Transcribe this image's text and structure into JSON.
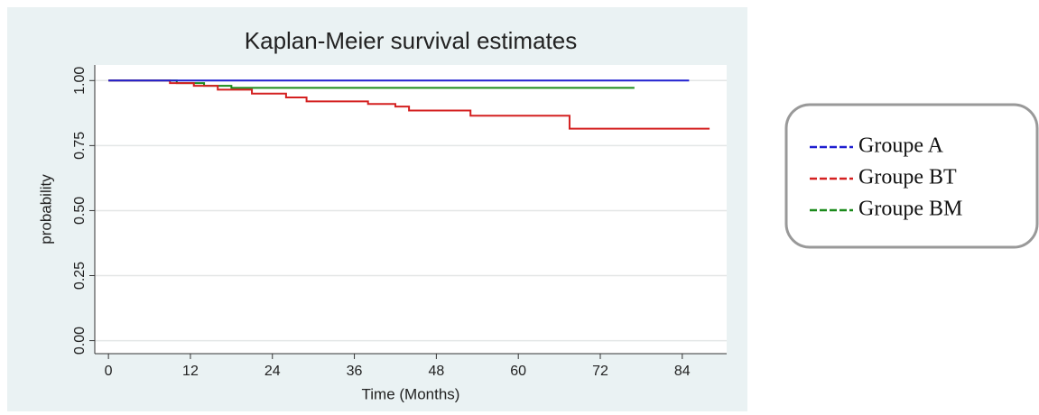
{
  "chart_data": {
    "type": "line",
    "steps": true,
    "title": "Kaplan-Meier survival estimates",
    "x_label": "Time (Months)",
    "y_label": "probability",
    "xlim": [
      -2,
      90.5
    ],
    "ylim": [
      -0.05,
      1.06
    ],
    "xticks": [
      0,
      12,
      24,
      36,
      48,
      60,
      72,
      84
    ],
    "yticks": [
      {
        "value": 0,
        "label": "0.00"
      },
      0.25,
      {
        "value": 0.5,
        "label": "0.50"
      },
      0.75,
      {
        "value": 1,
        "label": "1.00"
      }
    ],
    "grid": true,
    "series": [
      {
        "name": "Groupe A",
        "color": "#1f1fd0",
        "x": [
          0,
          85
        ],
        "values": [
          1,
          1
        ]
      },
      {
        "name": "Groupe BT",
        "color": "#d42020",
        "x": [
          0,
          9,
          12.5,
          16,
          21,
          26,
          29,
          38,
          42,
          44,
          53,
          67.5,
          88
        ],
        "values": [
          1,
          0.99,
          0.98,
          0.965,
          0.95,
          0.935,
          0.92,
          0.91,
          0.9,
          0.885,
          0.865,
          0.815,
          0.815
        ]
      },
      {
        "name": "Groupe BM",
        "color": "#1a8a1a",
        "x": [
          0,
          10,
          14,
          18,
          77
        ],
        "values": [
          1,
          0.99,
          0.98,
          0.972,
          0.972
        ]
      }
    ]
  }
}
